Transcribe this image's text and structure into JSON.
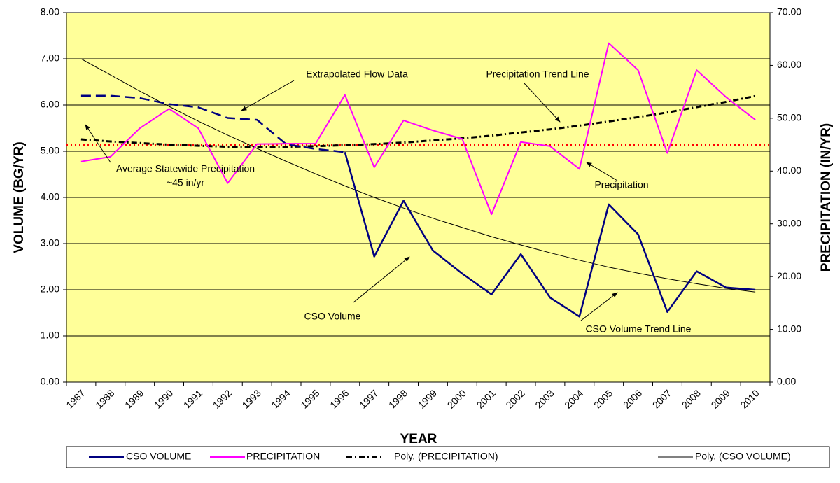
{
  "chart_data": {
    "type": "line",
    "categories": [
      "1987",
      "1988",
      "1989",
      "1990",
      "1991",
      "1992",
      "1993",
      "1994",
      "1995",
      "1996",
      "1997",
      "1998",
      "1999",
      "2000",
      "2001",
      "2002",
      "2003",
      "2004",
      "2005",
      "2006",
      "2007",
      "2008",
      "2009",
      "2010"
    ],
    "x_label": "YEAR",
    "y_label": "VOLUME (BG/YR)",
    "y2_label": "PRECIPITATION (IN/YR)",
    "ylim": [
      0,
      8
    ],
    "yticks": [
      {
        "value": 0,
        "label": "0.00"
      },
      {
        "value": 1,
        "label": "1.00"
      },
      {
        "value": 2,
        "label": "2.00"
      },
      {
        "value": 3,
        "label": "3.00"
      },
      {
        "value": 4,
        "label": "4.00"
      },
      {
        "value": 5,
        "label": "5.00"
      },
      {
        "value": 6,
        "label": "6.00"
      },
      {
        "value": 7,
        "label": "7.00"
      },
      {
        "value": 8,
        "label": "8.00"
      }
    ],
    "y2lim": [
      0,
      70
    ],
    "y2ticks": [
      {
        "value": 0,
        "label": "0.00"
      },
      {
        "value": 10,
        "label": "10.00"
      },
      {
        "value": 20,
        "label": "20.00"
      },
      {
        "value": 30,
        "label": "30.00"
      },
      {
        "value": 40,
        "label": "40.00"
      },
      {
        "value": 50,
        "label": "50.00"
      },
      {
        "value": 60,
        "label": "60.00"
      },
      {
        "value": 70,
        "label": "70.00"
      }
    ],
    "grid": true,
    "plot_background": "#ffff99",
    "legend": "bottom",
    "series": [
      {
        "name": "CSO VOLUME",
        "color": "#000080",
        "width": 2.5,
        "values": [
          null,
          null,
          null,
          null,
          null,
          null,
          null,
          null,
          null,
          4.98,
          2.72,
          3.93,
          2.85,
          2.35,
          1.9,
          2.77,
          1.83,
          1.42,
          3.85,
          3.2,
          1.52,
          2.4,
          2.05,
          2.0
        ]
      },
      {
        "name": "PRECIPITATION",
        "color": "#ff00ff",
        "width": 2,
        "axis": "y2",
        "values": [
          41.8,
          42.7,
          48.1,
          51.8,
          48.1,
          37.7,
          45.1,
          45.2,
          45.2,
          54.4,
          40.7,
          49.6,
          47.7,
          46.1,
          31.8,
          45.5,
          44.7,
          40.4,
          64.2,
          59.1,
          43.4,
          59.1,
          54.0,
          49.7
        ]
      },
      {
        "name": "Poly. (PRECIPITATION)",
        "color": "#000000",
        "width": 3,
        "dash": "8 4 2 4",
        "axis": "y2",
        "values": [
          46.0,
          45.6,
          45.3,
          45.0,
          44.8,
          44.6,
          44.6,
          44.6,
          44.7,
          44.9,
          45.1,
          45.4,
          45.8,
          46.2,
          46.7,
          47.3,
          47.9,
          48.6,
          49.4,
          50.2,
          51.1,
          52.1,
          53.1,
          54.2
        ]
      },
      {
        "name": "Poly. (CSO VOLUME)",
        "color": "#000000",
        "width": 1,
        "values": [
          7.0,
          6.65,
          6.3,
          5.97,
          5.65,
          5.35,
          5.06,
          4.78,
          4.51,
          4.25,
          4.0,
          3.77,
          3.55,
          3.35,
          3.15,
          2.97,
          2.8,
          2.64,
          2.49,
          2.36,
          2.24,
          2.13,
          2.03,
          1.95
        ]
      }
    ],
    "extrapolated": {
      "color": "#000080",
      "width": 2.5,
      "dash": "14 7",
      "values": [
        6.2,
        6.2,
        6.15,
        6.02,
        5.95,
        5.72,
        5.68,
        5.15,
        5.05,
        4.98,
        null,
        null,
        null,
        null,
        null,
        null,
        null,
        null,
        null,
        null,
        null,
        null,
        null,
        null
      ]
    },
    "reference_line": {
      "value": 45,
      "axis": "y2",
      "color": "#ff0000"
    },
    "annotations": [
      {
        "lines": [
          "Extrapolated Flow Data"
        ]
      },
      {
        "lines": [
          "Precipitation Trend Line"
        ]
      },
      {
        "lines": [
          "Average Statewide Precipitation",
          "~45 in/yr"
        ]
      },
      {
        "lines": [
          "Precipitation"
        ]
      },
      {
        "lines": [
          "CSO Volume"
        ]
      },
      {
        "lines": [
          "CSO Volume Trend Line"
        ]
      }
    ]
  }
}
